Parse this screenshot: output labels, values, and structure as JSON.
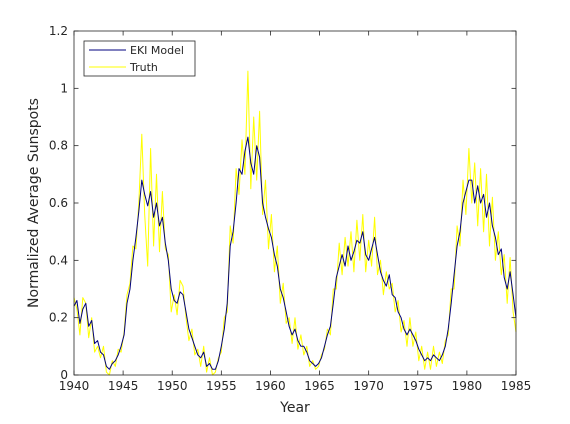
{
  "chart_data": {
    "type": "line",
    "title": "",
    "xlabel": "Year",
    "ylabel": "Normalized Average Sunspots",
    "xlim": [
      1940,
      1985
    ],
    "ylim": [
      0,
      1.2
    ],
    "xticks": [
      1940,
      1945,
      1950,
      1955,
      1960,
      1965,
      1970,
      1975,
      1980,
      1985
    ],
    "yticks": [
      0,
      0.2,
      0.4,
      0.6,
      0.8,
      1,
      1.2
    ],
    "xtick_labels": [
      "1940",
      "1945",
      "1950",
      "1955",
      "1960",
      "1965",
      "1970",
      "1975",
      "1980",
      "1985"
    ],
    "ytick_labels": [
      "0",
      "0.2",
      "0.4",
      "0.6",
      "0.8",
      "1",
      "1.2"
    ],
    "grid": false,
    "legend_position": "top-left",
    "series": [
      {
        "name": "EKI Model",
        "color": "#00007f",
        "points": [
          [
            1940.0,
            0.24
          ],
          [
            1940.3,
            0.26
          ],
          [
            1940.6,
            0.18
          ],
          [
            1940.9,
            0.23
          ],
          [
            1941.2,
            0.25
          ],
          [
            1941.5,
            0.17
          ],
          [
            1941.8,
            0.19
          ],
          [
            1942.1,
            0.11
          ],
          [
            1942.4,
            0.12
          ],
          [
            1942.7,
            0.08
          ],
          [
            1943.0,
            0.07
          ],
          [
            1943.3,
            0.03
          ],
          [
            1943.6,
            0.02
          ],
          [
            1943.9,
            0.04
          ],
          [
            1944.2,
            0.05
          ],
          [
            1944.5,
            0.07
          ],
          [
            1944.8,
            0.1
          ],
          [
            1945.1,
            0.14
          ],
          [
            1945.4,
            0.25
          ],
          [
            1945.7,
            0.3
          ],
          [
            1946.0,
            0.4
          ],
          [
            1946.3,
            0.48
          ],
          [
            1946.6,
            0.57
          ],
          [
            1946.9,
            0.68
          ],
          [
            1947.2,
            0.63
          ],
          [
            1947.5,
            0.59
          ],
          [
            1947.8,
            0.64
          ],
          [
            1948.1,
            0.55
          ],
          [
            1948.4,
            0.6
          ],
          [
            1948.7,
            0.52
          ],
          [
            1949.0,
            0.55
          ],
          [
            1949.3,
            0.46
          ],
          [
            1949.6,
            0.4
          ],
          [
            1949.9,
            0.3
          ],
          [
            1950.2,
            0.26
          ],
          [
            1950.5,
            0.25
          ],
          [
            1950.8,
            0.29
          ],
          [
            1951.1,
            0.28
          ],
          [
            1951.4,
            0.22
          ],
          [
            1951.7,
            0.16
          ],
          [
            1952.0,
            0.13
          ],
          [
            1952.3,
            0.1
          ],
          [
            1952.6,
            0.07
          ],
          [
            1952.9,
            0.06
          ],
          [
            1953.2,
            0.08
          ],
          [
            1953.5,
            0.03
          ],
          [
            1953.8,
            0.04
          ],
          [
            1954.1,
            0.02
          ],
          [
            1954.4,
            0.02
          ],
          [
            1954.7,
            0.05
          ],
          [
            1955.0,
            0.1
          ],
          [
            1955.3,
            0.16
          ],
          [
            1955.6,
            0.25
          ],
          [
            1955.9,
            0.45
          ],
          [
            1956.2,
            0.5
          ],
          [
            1956.5,
            0.6
          ],
          [
            1956.8,
            0.72
          ],
          [
            1957.1,
            0.7
          ],
          [
            1957.4,
            0.78
          ],
          [
            1957.7,
            0.83
          ],
          [
            1958.0,
            0.74
          ],
          [
            1958.3,
            0.7
          ],
          [
            1958.6,
            0.8
          ],
          [
            1958.9,
            0.76
          ],
          [
            1959.2,
            0.6
          ],
          [
            1959.5,
            0.55
          ],
          [
            1959.8,
            0.51
          ],
          [
            1960.1,
            0.48
          ],
          [
            1960.4,
            0.42
          ],
          [
            1960.7,
            0.38
          ],
          [
            1961.0,
            0.3
          ],
          [
            1961.3,
            0.27
          ],
          [
            1961.6,
            0.22
          ],
          [
            1961.9,
            0.17
          ],
          [
            1962.2,
            0.14
          ],
          [
            1962.5,
            0.16
          ],
          [
            1962.8,
            0.12
          ],
          [
            1963.1,
            0.1
          ],
          [
            1963.4,
            0.1
          ],
          [
            1963.7,
            0.08
          ],
          [
            1964.0,
            0.05
          ],
          [
            1964.3,
            0.04
          ],
          [
            1964.6,
            0.03
          ],
          [
            1964.9,
            0.04
          ],
          [
            1965.2,
            0.06
          ],
          [
            1965.5,
            0.1
          ],
          [
            1965.8,
            0.14
          ],
          [
            1966.1,
            0.17
          ],
          [
            1966.4,
            0.25
          ],
          [
            1966.7,
            0.34
          ],
          [
            1967.0,
            0.38
          ],
          [
            1967.3,
            0.42
          ],
          [
            1967.6,
            0.38
          ],
          [
            1967.9,
            0.45
          ],
          [
            1968.2,
            0.4
          ],
          [
            1968.5,
            0.43
          ],
          [
            1968.8,
            0.47
          ],
          [
            1969.1,
            0.46
          ],
          [
            1969.4,
            0.5
          ],
          [
            1969.7,
            0.42
          ],
          [
            1970.0,
            0.4
          ],
          [
            1970.3,
            0.44
          ],
          [
            1970.6,
            0.48
          ],
          [
            1970.9,
            0.42
          ],
          [
            1971.2,
            0.36
          ],
          [
            1971.5,
            0.33
          ],
          [
            1971.8,
            0.31
          ],
          [
            1972.1,
            0.35
          ],
          [
            1972.4,
            0.28
          ],
          [
            1972.7,
            0.27
          ],
          [
            1973.0,
            0.22
          ],
          [
            1973.3,
            0.2
          ],
          [
            1973.6,
            0.16
          ],
          [
            1973.9,
            0.14
          ],
          [
            1974.2,
            0.16
          ],
          [
            1974.5,
            0.14
          ],
          [
            1974.8,
            0.12
          ],
          [
            1975.1,
            0.09
          ],
          [
            1975.4,
            0.07
          ],
          [
            1975.7,
            0.05
          ],
          [
            1976.0,
            0.06
          ],
          [
            1976.3,
            0.05
          ],
          [
            1976.6,
            0.07
          ],
          [
            1976.9,
            0.06
          ],
          [
            1977.2,
            0.05
          ],
          [
            1977.5,
            0.07
          ],
          [
            1977.8,
            0.1
          ],
          [
            1978.1,
            0.16
          ],
          [
            1978.4,
            0.25
          ],
          [
            1978.7,
            0.35
          ],
          [
            1979.0,
            0.45
          ],
          [
            1979.3,
            0.5
          ],
          [
            1979.6,
            0.6
          ],
          [
            1979.9,
            0.64
          ],
          [
            1980.2,
            0.68
          ],
          [
            1980.5,
            0.68
          ],
          [
            1980.8,
            0.6
          ],
          [
            1981.1,
            0.66
          ],
          [
            1981.4,
            0.6
          ],
          [
            1981.7,
            0.63
          ],
          [
            1982.0,
            0.55
          ],
          [
            1982.3,
            0.6
          ],
          [
            1982.6,
            0.52
          ],
          [
            1982.9,
            0.48
          ],
          [
            1983.2,
            0.42
          ],
          [
            1983.5,
            0.44
          ],
          [
            1983.8,
            0.34
          ],
          [
            1984.1,
            0.3
          ],
          [
            1984.4,
            0.36
          ],
          [
            1984.7,
            0.28
          ],
          [
            1985.0,
            0.2
          ]
        ]
      },
      {
        "name": "Truth",
        "color": "#ffff00",
        "points": [
          [
            1940.0,
            0.27
          ],
          [
            1940.3,
            0.23
          ],
          [
            1940.6,
            0.14
          ],
          [
            1940.9,
            0.27
          ],
          [
            1941.2,
            0.25
          ],
          [
            1941.5,
            0.13
          ],
          [
            1941.8,
            0.2
          ],
          [
            1942.1,
            0.08
          ],
          [
            1942.4,
            0.1
          ],
          [
            1942.7,
            0.06
          ],
          [
            1943.0,
            0.1
          ],
          [
            1943.3,
            0.01
          ],
          [
            1943.6,
            0.0
          ],
          [
            1943.9,
            0.05
          ],
          [
            1944.2,
            0.03
          ],
          [
            1944.5,
            0.09
          ],
          [
            1944.8,
            0.08
          ],
          [
            1945.1,
            0.15
          ],
          [
            1945.4,
            0.28
          ],
          [
            1945.7,
            0.32
          ],
          [
            1946.0,
            0.45
          ],
          [
            1946.3,
            0.44
          ],
          [
            1946.6,
            0.6
          ],
          [
            1946.9,
            0.84
          ],
          [
            1947.2,
            0.56
          ],
          [
            1947.5,
            0.38
          ],
          [
            1947.8,
            0.79
          ],
          [
            1948.1,
            0.45
          ],
          [
            1948.4,
            0.7
          ],
          [
            1948.7,
            0.43
          ],
          [
            1949.0,
            0.64
          ],
          [
            1949.3,
            0.44
          ],
          [
            1949.6,
            0.42
          ],
          [
            1949.9,
            0.22
          ],
          [
            1950.2,
            0.28
          ],
          [
            1950.5,
            0.21
          ],
          [
            1950.8,
            0.33
          ],
          [
            1951.1,
            0.31
          ],
          [
            1951.4,
            0.2
          ],
          [
            1951.7,
            0.12
          ],
          [
            1952.0,
            0.16
          ],
          [
            1952.3,
            0.07
          ],
          [
            1952.6,
            0.09
          ],
          [
            1952.9,
            0.03
          ],
          [
            1953.2,
            0.1
          ],
          [
            1953.5,
            0.01
          ],
          [
            1953.8,
            0.06
          ],
          [
            1954.1,
            0.0
          ],
          [
            1954.4,
            0.01
          ],
          [
            1954.7,
            0.06
          ],
          [
            1955.0,
            0.08
          ],
          [
            1955.3,
            0.2
          ],
          [
            1955.6,
            0.22
          ],
          [
            1955.9,
            0.52
          ],
          [
            1956.2,
            0.46
          ],
          [
            1956.5,
            0.72
          ],
          [
            1956.8,
            0.63
          ],
          [
            1957.1,
            0.82
          ],
          [
            1957.4,
            0.7
          ],
          [
            1957.7,
            1.06
          ],
          [
            1958.0,
            0.65
          ],
          [
            1958.3,
            0.9
          ],
          [
            1958.6,
            0.68
          ],
          [
            1958.9,
            0.92
          ],
          [
            1959.2,
            0.56
          ],
          [
            1959.5,
            0.68
          ],
          [
            1959.8,
            0.44
          ],
          [
            1960.1,
            0.56
          ],
          [
            1960.4,
            0.36
          ],
          [
            1960.7,
            0.45
          ],
          [
            1961.0,
            0.25
          ],
          [
            1961.3,
            0.32
          ],
          [
            1961.6,
            0.18
          ],
          [
            1961.9,
            0.2
          ],
          [
            1962.2,
            0.11
          ],
          [
            1962.5,
            0.2
          ],
          [
            1962.8,
            0.09
          ],
          [
            1963.1,
            0.14
          ],
          [
            1963.4,
            0.07
          ],
          [
            1963.7,
            0.1
          ],
          [
            1964.0,
            0.03
          ],
          [
            1964.3,
            0.05
          ],
          [
            1964.6,
            0.02
          ],
          [
            1964.9,
            0.03
          ],
          [
            1965.2,
            0.07
          ],
          [
            1965.5,
            0.09
          ],
          [
            1965.8,
            0.16
          ],
          [
            1966.1,
            0.14
          ],
          [
            1966.4,
            0.3
          ],
          [
            1966.7,
            0.3
          ],
          [
            1967.0,
            0.46
          ],
          [
            1967.3,
            0.35
          ],
          [
            1967.6,
            0.48
          ],
          [
            1967.9,
            0.38
          ],
          [
            1968.2,
            0.5
          ],
          [
            1968.5,
            0.36
          ],
          [
            1968.8,
            0.54
          ],
          [
            1969.1,
            0.4
          ],
          [
            1969.4,
            0.56
          ],
          [
            1969.7,
            0.36
          ],
          [
            1970.0,
            0.47
          ],
          [
            1970.3,
            0.38
          ],
          [
            1970.6,
            0.55
          ],
          [
            1970.9,
            0.35
          ],
          [
            1971.2,
            0.4
          ],
          [
            1971.5,
            0.28
          ],
          [
            1971.8,
            0.36
          ],
          [
            1972.1,
            0.3
          ],
          [
            1972.4,
            0.32
          ],
          [
            1972.7,
            0.22
          ],
          [
            1973.0,
            0.26
          ],
          [
            1973.3,
            0.15
          ],
          [
            1973.6,
            0.19
          ],
          [
            1973.9,
            0.1
          ],
          [
            1974.2,
            0.2
          ],
          [
            1974.5,
            0.1
          ],
          [
            1974.8,
            0.15
          ],
          [
            1975.1,
            0.05
          ],
          [
            1975.4,
            0.1
          ],
          [
            1975.7,
            0.02
          ],
          [
            1976.0,
            0.08
          ],
          [
            1976.3,
            0.02
          ],
          [
            1976.6,
            0.1
          ],
          [
            1976.9,
            0.03
          ],
          [
            1977.2,
            0.08
          ],
          [
            1977.5,
            0.04
          ],
          [
            1977.8,
            0.12
          ],
          [
            1978.1,
            0.14
          ],
          [
            1978.4,
            0.3
          ],
          [
            1978.7,
            0.3
          ],
          [
            1979.0,
            0.52
          ],
          [
            1979.3,
            0.45
          ],
          [
            1979.6,
            0.68
          ],
          [
            1979.9,
            0.56
          ],
          [
            1980.2,
            0.79
          ],
          [
            1980.5,
            0.6
          ],
          [
            1980.8,
            0.74
          ],
          [
            1981.1,
            0.52
          ],
          [
            1981.4,
            0.72
          ],
          [
            1981.7,
            0.5
          ],
          [
            1982.0,
            0.7
          ],
          [
            1982.3,
            0.45
          ],
          [
            1982.6,
            0.62
          ],
          [
            1982.9,
            0.4
          ],
          [
            1983.2,
            0.5
          ],
          [
            1983.5,
            0.35
          ],
          [
            1983.8,
            0.42
          ],
          [
            1984.1,
            0.25
          ],
          [
            1984.4,
            0.41
          ],
          [
            1984.7,
            0.22
          ],
          [
            1985.0,
            0.15
          ]
        ]
      }
    ]
  }
}
